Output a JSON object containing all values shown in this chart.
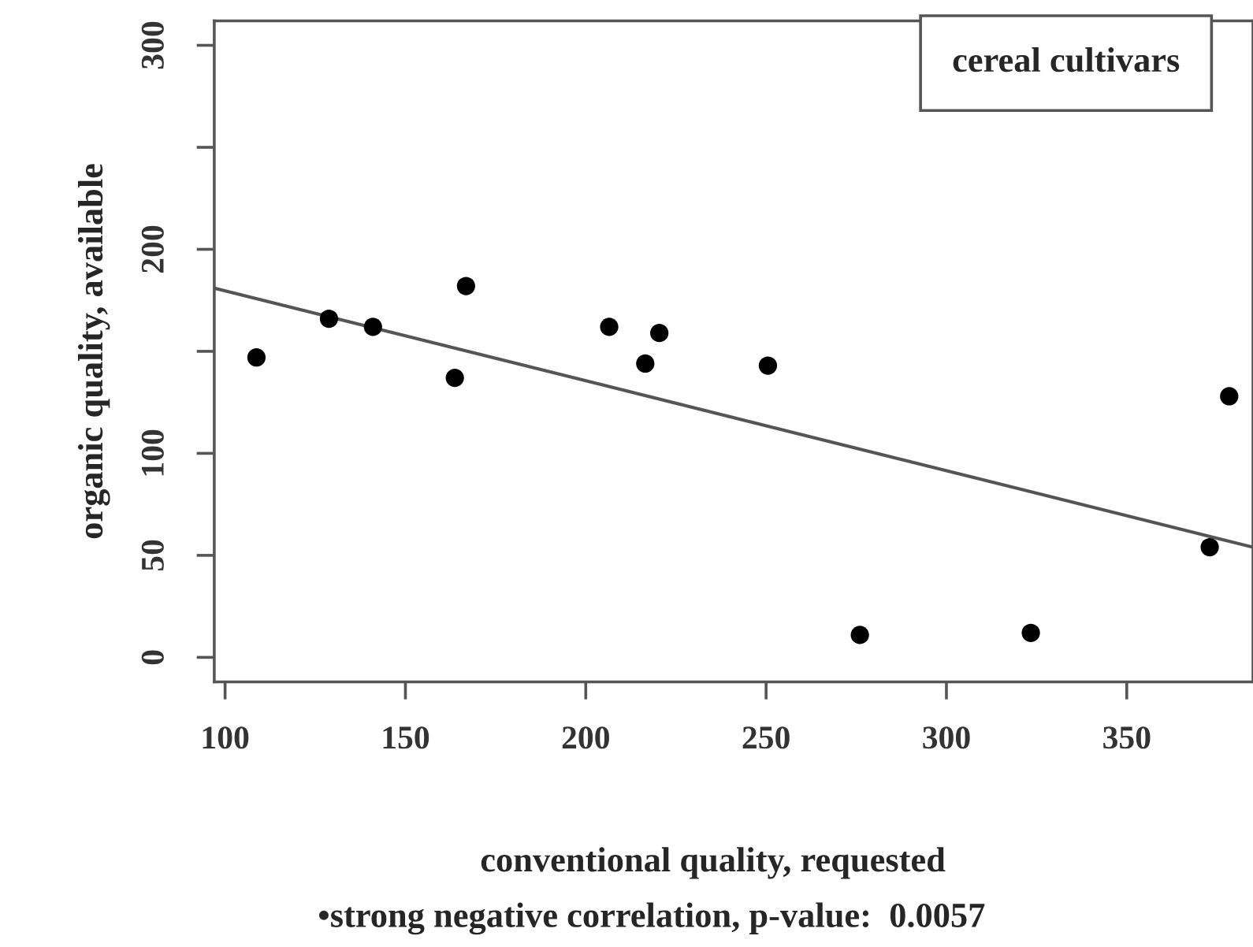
{
  "chart_data": {
    "type": "scatter",
    "xlabel": "conventional quality, requested",
    "ylabel": "organic quality, available",
    "annotations": [
      "cereal cultivars",
      "•strong negative correlation, p-value:  0.0057"
    ],
    "x": [
      108.7,
      128.8,
      141,
      163.7,
      166.8,
      206.5,
      216.5,
      220.4,
      250.5,
      276,
      323.4,
      373,
      378.4
    ],
    "series": [
      {
        "marker": "circle",
        "color": "#000000",
        "values": [
          147,
          166,
          162,
          137,
          182,
          162,
          144,
          159,
          143,
          11,
          12,
          54,
          128
        ]
      },
      {
        "type": "line",
        "marker": "none",
        "color": "#555555",
        "x": [
          97,
          385
        ],
        "values": [
          181,
          54
        ]
      }
    ],
    "xlim": [
      97,
      385
    ],
    "xticks": [
      100,
      150,
      200,
      250,
      300,
      350
    ],
    "ylim": [
      -12,
      312
    ],
    "yticks": [
      0,
      50,
      100,
      {
        "value": 150,
        "label": null
      },
      200,
      {
        "value": 250,
        "label": null
      },
      300
    ],
    "grid": false,
    "legend": false
  }
}
